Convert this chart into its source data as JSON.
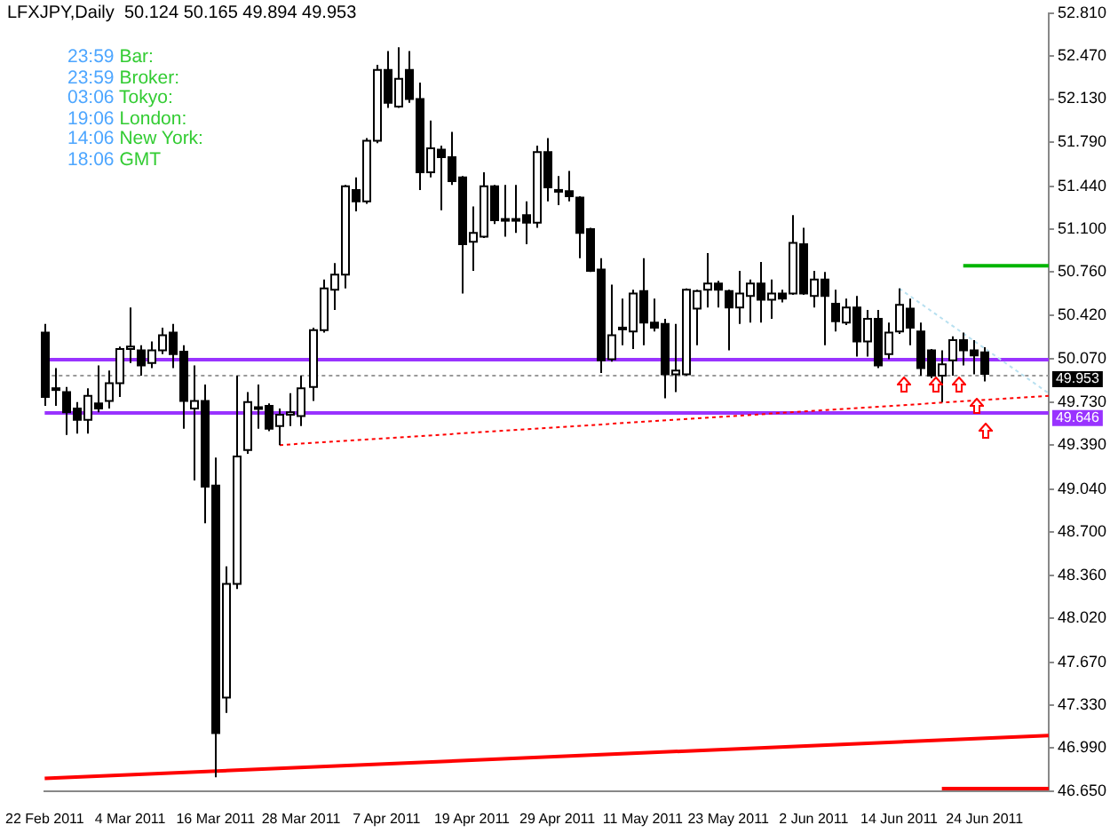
{
  "chart_data": {
    "type": "candlestick",
    "title": "LFXJPY,Daily  50.124 50.165 49.894 49.953",
    "annotations": [
      "23:59 Bar:",
      "23:59 Broker:",
      "03:06 Tokyo:",
      "19:06 London:",
      "14:06 New York:",
      "18:06 GMT"
    ],
    "categories": [
      "22 Feb 2011",
      null,
      null,
      null,
      null,
      null,
      null,
      null,
      "4 Mar 2011",
      null,
      null,
      null,
      null,
      null,
      null,
      null,
      "16 Mar 2011",
      null,
      null,
      null,
      null,
      null,
      null,
      null,
      "28 Mar 2011",
      null,
      null,
      null,
      null,
      null,
      null,
      null,
      "7 Apr 2011",
      null,
      null,
      null,
      null,
      null,
      null,
      null,
      "19 Apr 2011",
      null,
      null,
      null,
      null,
      null,
      null,
      null,
      "29 Apr 2011",
      null,
      null,
      null,
      null,
      null,
      null,
      null,
      "11 May 2011",
      null,
      null,
      null,
      null,
      null,
      null,
      null,
      "23 May 2011",
      null,
      null,
      null,
      null,
      null,
      null,
      null,
      "2 Jun 2011",
      null,
      null,
      null,
      null,
      null,
      null,
      null,
      "14 Jun 2011",
      null,
      null,
      null,
      null,
      null,
      null,
      null,
      "24 Jun 2011",
      null,
      null,
      null,
      null,
      null,
      null
    ],
    "ohlc": [
      [
        50.28,
        50.35,
        49.7,
        49.77
      ],
      [
        49.84,
        50.0,
        49.7,
        49.83
      ],
      [
        49.81,
        49.85,
        49.47,
        49.65
      ],
      [
        49.68,
        49.73,
        49.48,
        49.59
      ],
      [
        49.59,
        49.84,
        49.48,
        49.78
      ],
      [
        49.72,
        50.02,
        49.65,
        49.68
      ],
      [
        49.74,
        49.98,
        49.68,
        49.88
      ],
      [
        49.88,
        50.17,
        49.77,
        50.15
      ],
      [
        50.15,
        50.48,
        50.04,
        50.17
      ],
      [
        50.14,
        50.18,
        49.94,
        50.02
      ],
      [
        50.04,
        50.21,
        50.0,
        50.14
      ],
      [
        50.14,
        50.32,
        50.11,
        50.26
      ],
      [
        50.28,
        50.35,
        50.0,
        50.11
      ],
      [
        50.13,
        50.18,
        49.52,
        49.74
      ],
      [
        49.68,
        50.02,
        49.11,
        49.74
      ],
      [
        49.74,
        49.87,
        48.77,
        49.06
      ],
      [
        49.07,
        49.29,
        46.76,
        47.11
      ],
      [
        47.39,
        48.43,
        47.27,
        48.29
      ],
      [
        48.29,
        49.94,
        48.25,
        49.3
      ],
      [
        49.35,
        49.81,
        49.32,
        49.73
      ],
      [
        49.69,
        49.87,
        49.52,
        49.68
      ],
      [
        49.7,
        49.72,
        49.5,
        49.52
      ],
      [
        49.54,
        49.68,
        49.39,
        49.63
      ],
      [
        49.63,
        49.8,
        49.54,
        49.65
      ],
      [
        49.62,
        49.94,
        49.54,
        49.84
      ],
      [
        49.85,
        50.32,
        49.74,
        50.3
      ],
      [
        50.3,
        50.7,
        50.28,
        50.63
      ],
      [
        50.62,
        50.83,
        50.46,
        50.74
      ],
      [
        50.74,
        51.45,
        50.63,
        51.44
      ],
      [
        51.41,
        51.51,
        51.24,
        51.32
      ],
      [
        51.32,
        51.82,
        51.3,
        51.8
      ],
      [
        51.8,
        52.4,
        51.78,
        52.36
      ],
      [
        52.36,
        52.51,
        52.06,
        52.1
      ],
      [
        52.07,
        52.54,
        52.06,
        52.29
      ],
      [
        52.36,
        52.51,
        52.1,
        52.13
      ],
      [
        52.13,
        52.26,
        51.41,
        51.55
      ],
      [
        51.55,
        51.96,
        51.51,
        51.74
      ],
      [
        51.73,
        51.76,
        51.25,
        51.67
      ],
      [
        51.67,
        51.87,
        51.45,
        51.48
      ],
      [
        51.51,
        51.52,
        50.59,
        50.98
      ],
      [
        51.0,
        51.28,
        50.77,
        51.07
      ],
      [
        51.04,
        51.55,
        51.03,
        51.44
      ],
      [
        51.44,
        51.45,
        51.14,
        51.17
      ],
      [
        51.18,
        51.45,
        51.04,
        51.17
      ],
      [
        51.17,
        51.45,
        51.07,
        51.18
      ],
      [
        51.21,
        51.32,
        50.98,
        51.15
      ],
      [
        51.15,
        51.76,
        51.11,
        51.71
      ],
      [
        51.71,
        51.82,
        51.32,
        51.43
      ],
      [
        51.41,
        51.52,
        51.29,
        51.4
      ],
      [
        51.4,
        51.56,
        51.32,
        51.36
      ],
      [
        51.35,
        51.36,
        50.87,
        51.07
      ],
      [
        51.1,
        51.11,
        50.76,
        50.77
      ],
      [
        50.78,
        50.87,
        49.96,
        50.06
      ],
      [
        50.07,
        50.66,
        50.05,
        50.26
      ],
      [
        50.32,
        50.55,
        50.18,
        50.31
      ],
      [
        50.29,
        50.62,
        50.15,
        50.59
      ],
      [
        50.61,
        50.87,
        50.18,
        50.36
      ],
      [
        50.36,
        50.55,
        50.29,
        50.32
      ],
      [
        50.35,
        50.39,
        49.76,
        49.95
      ],
      [
        49.95,
        50.35,
        49.81,
        49.98
      ],
      [
        49.95,
        50.63,
        49.94,
        50.62
      ],
      [
        50.47,
        50.62,
        50.18,
        50.61
      ],
      [
        50.62,
        50.91,
        50.48,
        50.67
      ],
      [
        50.67,
        50.69,
        50.48,
        50.62
      ],
      [
        50.61,
        50.62,
        50.14,
        50.48
      ],
      [
        50.48,
        50.77,
        50.35,
        50.59
      ],
      [
        50.57,
        50.7,
        50.36,
        50.67
      ],
      [
        50.67,
        50.84,
        50.36,
        50.54
      ],
      [
        50.54,
        50.7,
        50.39,
        50.59
      ],
      [
        50.59,
        50.62,
        50.52,
        50.55
      ],
      [
        50.59,
        51.21,
        50.58,
        50.99
      ],
      [
        50.98,
        51.11,
        50.58,
        50.59
      ],
      [
        50.57,
        50.77,
        50.48,
        50.7
      ],
      [
        50.7,
        50.76,
        50.18,
        50.57
      ],
      [
        50.51,
        50.62,
        50.29,
        50.37
      ],
      [
        50.36,
        50.55,
        50.34,
        50.48
      ],
      [
        50.48,
        50.57,
        50.09,
        50.21
      ],
      [
        50.21,
        50.46,
        50.09,
        50.39
      ],
      [
        50.39,
        50.46,
        50.0,
        50.02
      ],
      [
        50.11,
        50.36,
        50.07,
        50.28
      ],
      [
        50.29,
        50.63,
        50.27,
        50.5
      ],
      [
        50.47,
        50.55,
        50.18,
        50.32
      ],
      [
        50.29,
        50.36,
        49.94,
        50.0
      ],
      [
        50.14,
        50.15,
        49.92,
        49.94
      ],
      [
        49.94,
        50.14,
        49.73,
        50.03
      ],
      [
        50.06,
        50.25,
        49.94,
        50.22
      ],
      [
        50.22,
        50.28,
        50.02,
        50.14
      ],
      [
        50.14,
        50.22,
        49.95,
        50.1
      ],
      [
        50.124,
        50.165,
        49.894,
        49.953
      ],
      null,
      null,
      null,
      null,
      null,
      null
    ],
    "series": [
      {
        "type": "line",
        "color": "#ff0000",
        "line_style": "solid",
        "values": [
          46.75,
          null,
          null,
          null,
          null,
          null,
          null,
          null,
          null,
          null,
          null,
          null,
          null,
          null,
          null,
          null,
          null,
          null,
          null,
          null,
          null,
          null,
          null,
          null,
          null,
          null,
          null,
          null,
          null,
          null,
          null,
          null,
          null,
          null,
          null,
          null,
          null,
          null,
          null,
          null,
          null,
          null,
          null,
          null,
          null,
          null,
          null,
          null,
          null,
          null,
          null,
          null,
          null,
          null,
          null,
          null,
          null,
          null,
          null,
          null,
          null,
          null,
          null,
          null,
          null,
          null,
          null,
          null,
          null,
          null,
          null,
          null,
          null,
          null,
          null,
          null,
          null,
          null,
          null,
          null,
          null,
          null,
          null,
          null,
          null,
          null,
          null,
          null,
          null,
          null,
          null,
          null,
          null,
          null,
          47.09
        ]
      },
      {
        "type": "line",
        "color": "#ff0000",
        "line_style": "dotted",
        "values": [
          null,
          null,
          null,
          null,
          null,
          null,
          null,
          null,
          null,
          null,
          null,
          null,
          null,
          null,
          null,
          null,
          null,
          null,
          null,
          null,
          null,
          null,
          49.39,
          null,
          null,
          null,
          null,
          null,
          null,
          null,
          null,
          null,
          null,
          null,
          null,
          null,
          null,
          null,
          null,
          null,
          null,
          null,
          null,
          null,
          null,
          null,
          null,
          null,
          null,
          null,
          null,
          null,
          null,
          null,
          null,
          null,
          null,
          null,
          null,
          null,
          null,
          null,
          null,
          null,
          null,
          null,
          null,
          null,
          null,
          null,
          null,
          null,
          null,
          null,
          null,
          null,
          null,
          null,
          null,
          null,
          null,
          null,
          null,
          null,
          null,
          null,
          null,
          null,
          null,
          null,
          null,
          null,
          null,
          null,
          49.78
        ]
      },
      {
        "type": "line",
        "color": "#b8e0f0",
        "line_style": "dotted",
        "values": [
          null,
          null,
          null,
          null,
          null,
          null,
          null,
          null,
          null,
          null,
          null,
          null,
          null,
          null,
          null,
          null,
          null,
          null,
          null,
          null,
          null,
          null,
          null,
          null,
          null,
          null,
          null,
          null,
          null,
          null,
          null,
          null,
          null,
          null,
          null,
          null,
          null,
          null,
          null,
          null,
          null,
          null,
          null,
          null,
          null,
          null,
          null,
          null,
          null,
          null,
          null,
          null,
          null,
          null,
          null,
          null,
          null,
          null,
          null,
          null,
          null,
          null,
          null,
          null,
          null,
          null,
          null,
          null,
          null,
          null,
          null,
          null,
          null,
          null,
          null,
          null,
          null,
          null,
          null,
          null,
          50.63,
          null,
          null,
          null,
          null,
          null,
          null,
          null,
          null,
          null,
          null,
          null,
          null,
          null,
          49.8
        ]
      },
      {
        "type": "line",
        "color": "#00b400",
        "line_style": "solid",
        "values": [
          null,
          null,
          null,
          null,
          null,
          null,
          null,
          null,
          null,
          null,
          null,
          null,
          null,
          null,
          null,
          null,
          null,
          null,
          null,
          null,
          null,
          null,
          null,
          null,
          null,
          null,
          null,
          null,
          null,
          null,
          null,
          null,
          null,
          null,
          null,
          null,
          null,
          null,
          null,
          null,
          null,
          null,
          null,
          null,
          null,
          null,
          null,
          null,
          null,
          null,
          null,
          null,
          null,
          null,
          null,
          null,
          null,
          null,
          null,
          null,
          null,
          null,
          null,
          null,
          null,
          null,
          null,
          null,
          null,
          null,
          null,
          null,
          null,
          null,
          null,
          null,
          null,
          null,
          null,
          null,
          null,
          null,
          null,
          null,
          null,
          null,
          50.81,
          null,
          null,
          null,
          null,
          null,
          null,
          null,
          50.81
        ]
      },
      {
        "type": "line",
        "color": "#ff0000",
        "line_style": "solid",
        "values": [
          null,
          null,
          null,
          null,
          null,
          null,
          null,
          null,
          null,
          null,
          null,
          null,
          null,
          null,
          null,
          null,
          null,
          null,
          null,
          null,
          null,
          null,
          null,
          null,
          null,
          null,
          null,
          null,
          null,
          null,
          null,
          null,
          null,
          null,
          null,
          null,
          null,
          null,
          null,
          null,
          null,
          null,
          null,
          null,
          null,
          null,
          null,
          null,
          null,
          null,
          null,
          null,
          null,
          null,
          null,
          null,
          null,
          null,
          null,
          null,
          null,
          null,
          null,
          null,
          null,
          null,
          null,
          null,
          null,
          null,
          null,
          null,
          null,
          null,
          null,
          null,
          null,
          null,
          null,
          null,
          null,
          null,
          null,
          null,
          46.67,
          null,
          null,
          null,
          null,
          null,
          null,
          null,
          null,
          null,
          46.67
        ]
      }
    ],
    "ylim": [
      46.65,
      52.81
    ],
    "yticks": [
      {
        "value": 52.81,
        "label": "52.810"
      },
      {
        "value": 52.47,
        "label": "52.470"
      },
      {
        "value": 52.13,
        "label": "52.130"
      },
      {
        "value": 51.79,
        "label": "51.790"
      },
      {
        "value": 51.44,
        "label": "51.440"
      },
      {
        "value": 51.1,
        "label": "51.100"
      },
      {
        "value": 50.76,
        "label": "50.760"
      },
      {
        "value": 50.42,
        "label": "50.420"
      },
      {
        "value": 50.07,
        "label": "50.070"
      },
      {
        "value": 49.73,
        "label": "49.730"
      },
      {
        "value": 49.39,
        "label": "49.390"
      },
      {
        "value": 49.04,
        "label": "49.040"
      },
      {
        "value": 48.7,
        "label": "48.700"
      },
      {
        "value": 48.36,
        "label": "48.360"
      },
      {
        "value": 48.02,
        "label": "48.020"
      },
      {
        "value": 47.67,
        "label": "47.670"
      },
      {
        "value": 47.33,
        "label": "47.330"
      },
      {
        "value": 46.99,
        "label": "46.990"
      },
      {
        "value": 46.65,
        "label": "46.650"
      }
    ],
    "ref_lines": [
      {
        "axis": "y",
        "value": 50.08,
        "color": "#9933ff",
        "line_style": "solid"
      },
      {
        "axis": "y",
        "value": 49.646,
        "label": "49.646",
        "color": "#9933ff",
        "line_style": "solid"
      },
      {
        "axis": "y",
        "value": 49.953,
        "label": "49.953",
        "color": "#999999",
        "line_style": "dotted"
      }
    ]
  }
}
